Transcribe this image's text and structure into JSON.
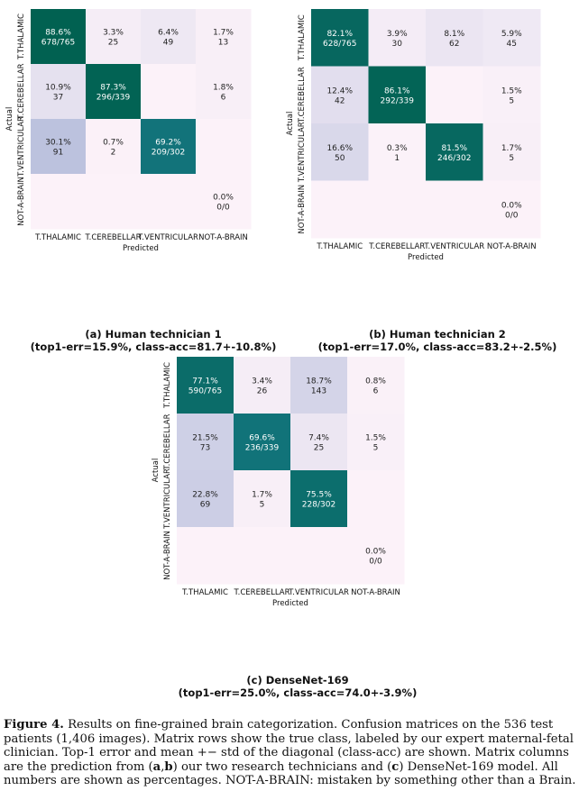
{
  "colors": {
    "scale_low": "#fcf2f9",
    "scale_mid": "#b9c0dd",
    "scale_high": "#00604e",
    "text_dark": "#222222",
    "text_light": "#ffffff"
  },
  "panels": [
    {
      "caption_line1": "(a) Human technician 1",
      "caption_line2": "(top1-err=15.9%, class-acc=81.7+-10.8%)"
    },
    {
      "caption_line1": "(b) Human technician 2",
      "caption_line2": "(top1-err=17.0%, class-acc=83.2+-2.5%)"
    },
    {
      "caption_line1": "(c) DenseNet-169",
      "caption_line2": "(top1-err=25.0%, class-acc=74.0+-3.9%)"
    }
  ],
  "figure_caption": {
    "label": "Figure 4.",
    "text": "Results on fine-grained brain categorization. Confusion matrices on the 536 test patients (1,406 images). Matrix rows show the true class, labeled by our expert maternal-fetal clinician. Top-1 error and mean +− std of the diagonal (class-acc) are shown. Matrix columns are the prediction from (",
    "bold1": "a",
    "sep": ",",
    "bold2": "b",
    "text2": ") our two research technicians and (",
    "bold3": "c",
    "text3": ") DenseNet-169 model. All numbers are shown as percentages. NOT-A-BRAIN: mistaken by something other than a Brain."
  },
  "chart_data": [
    {
      "type": "heatmap",
      "title": "(a) Human technician 1",
      "xlabel": "Predicted",
      "ylabel": "Actual",
      "x_categories": [
        "T.THALAMIC",
        "T.CEREBELLAR",
        "T.VENTRICULAR",
        "NOT-A-BRAIN"
      ],
      "y_categories": [
        "T.THALAMIC",
        "T.CEREBELLAR",
        "T.VENTRICULAR",
        "NOT-A-BRAIN"
      ],
      "values": [
        [
          88.6,
          3.3,
          6.4,
          1.7
        ],
        [
          10.9,
          87.3,
          null,
          1.8
        ],
        [
          30.1,
          0.7,
          69.2,
          null
        ],
        [
          null,
          null,
          null,
          0.0
        ]
      ],
      "labels": [
        [
          [
            "88.6%",
            "678/765"
          ],
          [
            "3.3%",
            "25"
          ],
          [
            "6.4%",
            "49"
          ],
          [
            "1.7%",
            "13"
          ]
        ],
        [
          [
            "10.9%",
            "37"
          ],
          [
            "87.3%",
            "296/339"
          ],
          null,
          [
            "1.8%",
            "6"
          ]
        ],
        [
          [
            "30.1%",
            "91"
          ],
          [
            "0.7%",
            "2"
          ],
          [
            "69.2%",
            "209/302"
          ],
          null
        ],
        [
          null,
          null,
          null,
          [
            "0.0%",
            "0/0"
          ]
        ]
      ]
    },
    {
      "type": "heatmap",
      "title": "(b) Human technician 2",
      "xlabel": "Predicted",
      "ylabel": "Actual",
      "x_categories": [
        "T.THALAMIC",
        "T.CEREBELLAR",
        "T.VENTRICULAR",
        "NOT-A-BRAIN"
      ],
      "y_categories": [
        "T.THALAMIC",
        "T.CEREBELLAR",
        "T.VENTRICULAR",
        "NOT-A-BRAIN"
      ],
      "values": [
        [
          82.1,
          3.9,
          8.1,
          5.9
        ],
        [
          12.4,
          86.1,
          null,
          1.5
        ],
        [
          16.6,
          0.3,
          81.5,
          1.7
        ],
        [
          null,
          null,
          null,
          0.0
        ]
      ],
      "labels": [
        [
          [
            "82.1%",
            "628/765"
          ],
          [
            "3.9%",
            "30"
          ],
          [
            "8.1%",
            "62"
          ],
          [
            "5.9%",
            "45"
          ]
        ],
        [
          [
            "12.4%",
            "42"
          ],
          [
            "86.1%",
            "292/339"
          ],
          null,
          [
            "1.5%",
            "5"
          ]
        ],
        [
          [
            "16.6%",
            "50"
          ],
          [
            "0.3%",
            "1"
          ],
          [
            "81.5%",
            "246/302"
          ],
          [
            "1.7%",
            "5"
          ]
        ],
        [
          null,
          null,
          null,
          [
            "0.0%",
            "0/0"
          ]
        ]
      ]
    },
    {
      "type": "heatmap",
      "title": "(c) DenseNet-169",
      "xlabel": "Predicted",
      "ylabel": "Actual",
      "x_categories": [
        "T.THALAMIC",
        "T.CEREBELLAR",
        "T.VENTRICULAR",
        "NOT-A-BRAIN"
      ],
      "y_categories": [
        "T.THALAMIC",
        "T.CEREBELLAR",
        "T.VENTRICULAR",
        "NOT-A-BRAIN"
      ],
      "values": [
        [
          77.1,
          3.4,
          18.7,
          0.8
        ],
        [
          21.5,
          69.6,
          7.4,
          1.5
        ],
        [
          22.8,
          1.7,
          75.5,
          null
        ],
        [
          null,
          null,
          null,
          0.0
        ]
      ],
      "labels": [
        [
          [
            "77.1%",
            "590/765"
          ],
          [
            "3.4%",
            "26"
          ],
          [
            "18.7%",
            "143"
          ],
          [
            "0.8%",
            "6"
          ]
        ],
        [
          [
            "21.5%",
            "73"
          ],
          [
            "69.6%",
            "236/339"
          ],
          [
            "7.4%",
            "25"
          ],
          [
            "1.5%",
            "5"
          ]
        ],
        [
          [
            "22.8%",
            "69"
          ],
          [
            "1.7%",
            "5"
          ],
          [
            "75.5%",
            "228/302"
          ],
          null
        ],
        [
          null,
          null,
          null,
          [
            "0.0%",
            "0/0"
          ]
        ]
      ]
    }
  ]
}
